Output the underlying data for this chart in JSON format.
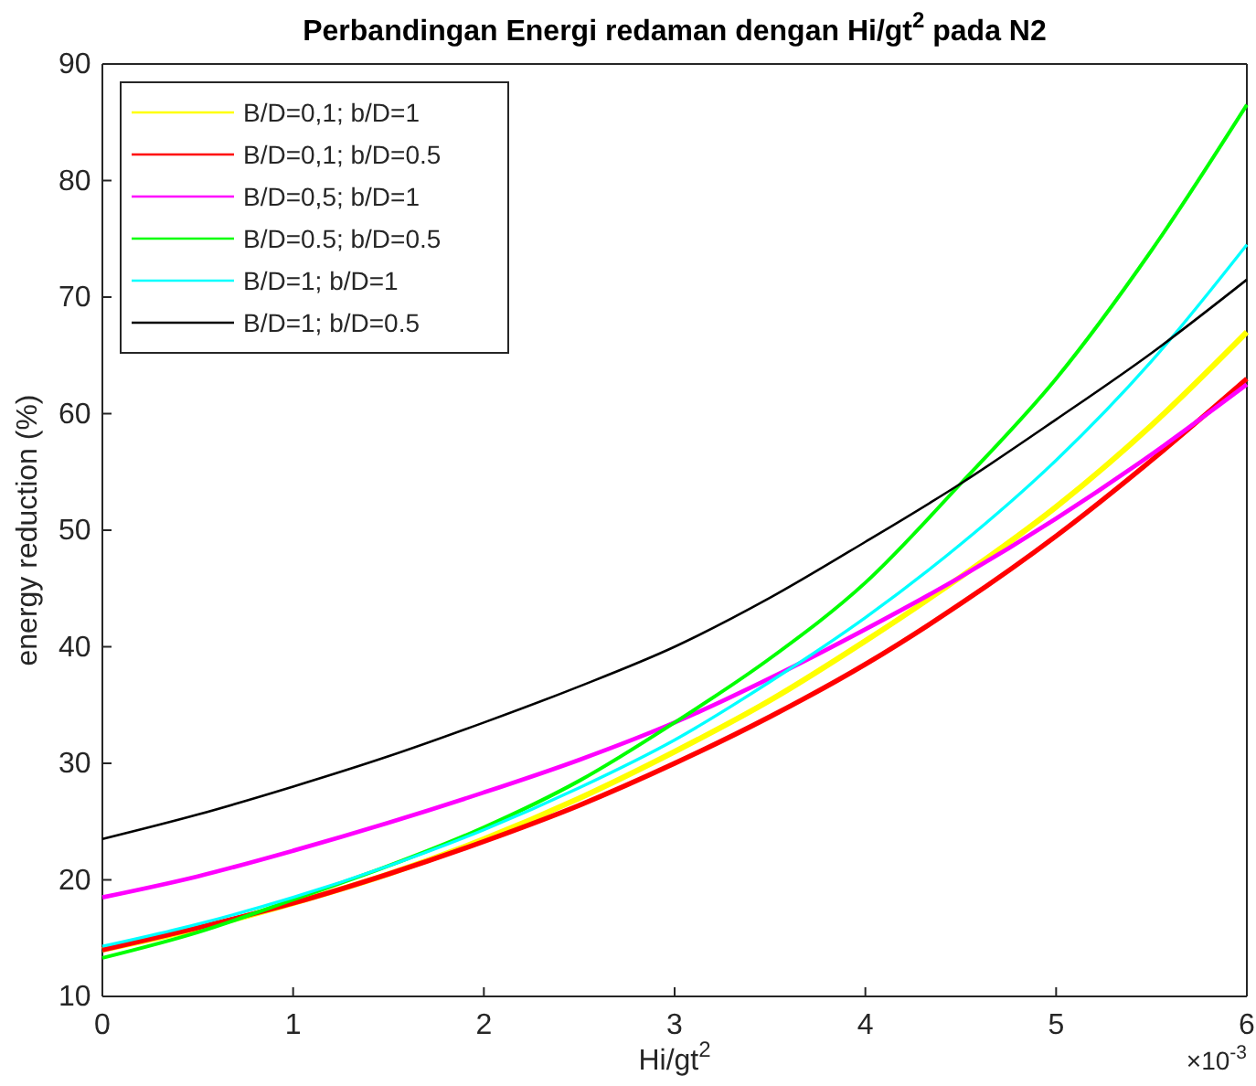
{
  "chart_data": {
    "type": "line",
    "title": "Perbandingan Energi redaman dengan Hi/gt$^{2}$ pada N2",
    "xlabel": "Hi/gt$^{2}$",
    "ylabel": "energy reduction (%)",
    "annotations": [
      "×10$^{-3}$"
    ],
    "x": [
      0,
      0.5,
      1,
      1.5,
      2,
      2.5,
      3,
      3.5,
      4,
      4.5,
      5,
      5.5,
      6
    ],
    "series": [
      {
        "name": "B/D=0,1; b/D=1",
        "color": "#ffff00",
        "values": [
          14,
          15.8,
          18,
          20.5,
          23.5,
          27,
          31,
          35.4,
          40.5,
          46,
          52,
          59,
          67
        ]
      },
      {
        "name": "B/D=0,1; b/D=0.5",
        "color": "#ff0000",
        "values": [
          14,
          15.9,
          18,
          20.5,
          23.3,
          26.4,
          30,
          34,
          38.5,
          43.7,
          49.5,
          56,
          63
        ]
      },
      {
        "name": "B/D=0,5; b/D=1",
        "color": "#ff00ff",
        "values": [
          18.5,
          20.3,
          22.5,
          24.9,
          27.5,
          30.3,
          33.5,
          37.3,
          41.5,
          46,
          51,
          56.5,
          62.5
        ]
      },
      {
        "name": "B/D=0.5; b/D=0.5",
        "color": "#00ff00",
        "values": [
          13.3,
          15.5,
          18.3,
          21.2,
          24.5,
          28.5,
          33.5,
          39,
          45.5,
          54,
          63,
          74,
          86.5
        ]
      },
      {
        "name": "B/D=1; b/D=1",
        "color": "#00ffff",
        "values": [
          14.3,
          16.2,
          18.5,
          21.2,
          24.3,
          27.9,
          32,
          37,
          42.5,
          48.8,
          56,
          64.5,
          74.5
        ]
      },
      {
        "name": "B/D=1; b/D=0.5",
        "color": "#000000",
        "values": [
          23.5,
          25.6,
          28,
          30.6,
          33.5,
          36.6,
          40,
          44.2,
          49,
          54,
          59.5,
          65.2,
          71.5
        ]
      }
    ],
    "xlim": [
      0,
      6
    ],
    "xticks": [
      0,
      1,
      2,
      3,
      4,
      5,
      6
    ],
    "ylim": [
      10,
      90
    ],
    "yticks": [
      10,
      20,
      30,
      40,
      50,
      60,
      70,
      80,
      90
    ],
    "grid": false,
    "legend": "top left",
    "marker": "none",
    "line_style": "solid"
  }
}
